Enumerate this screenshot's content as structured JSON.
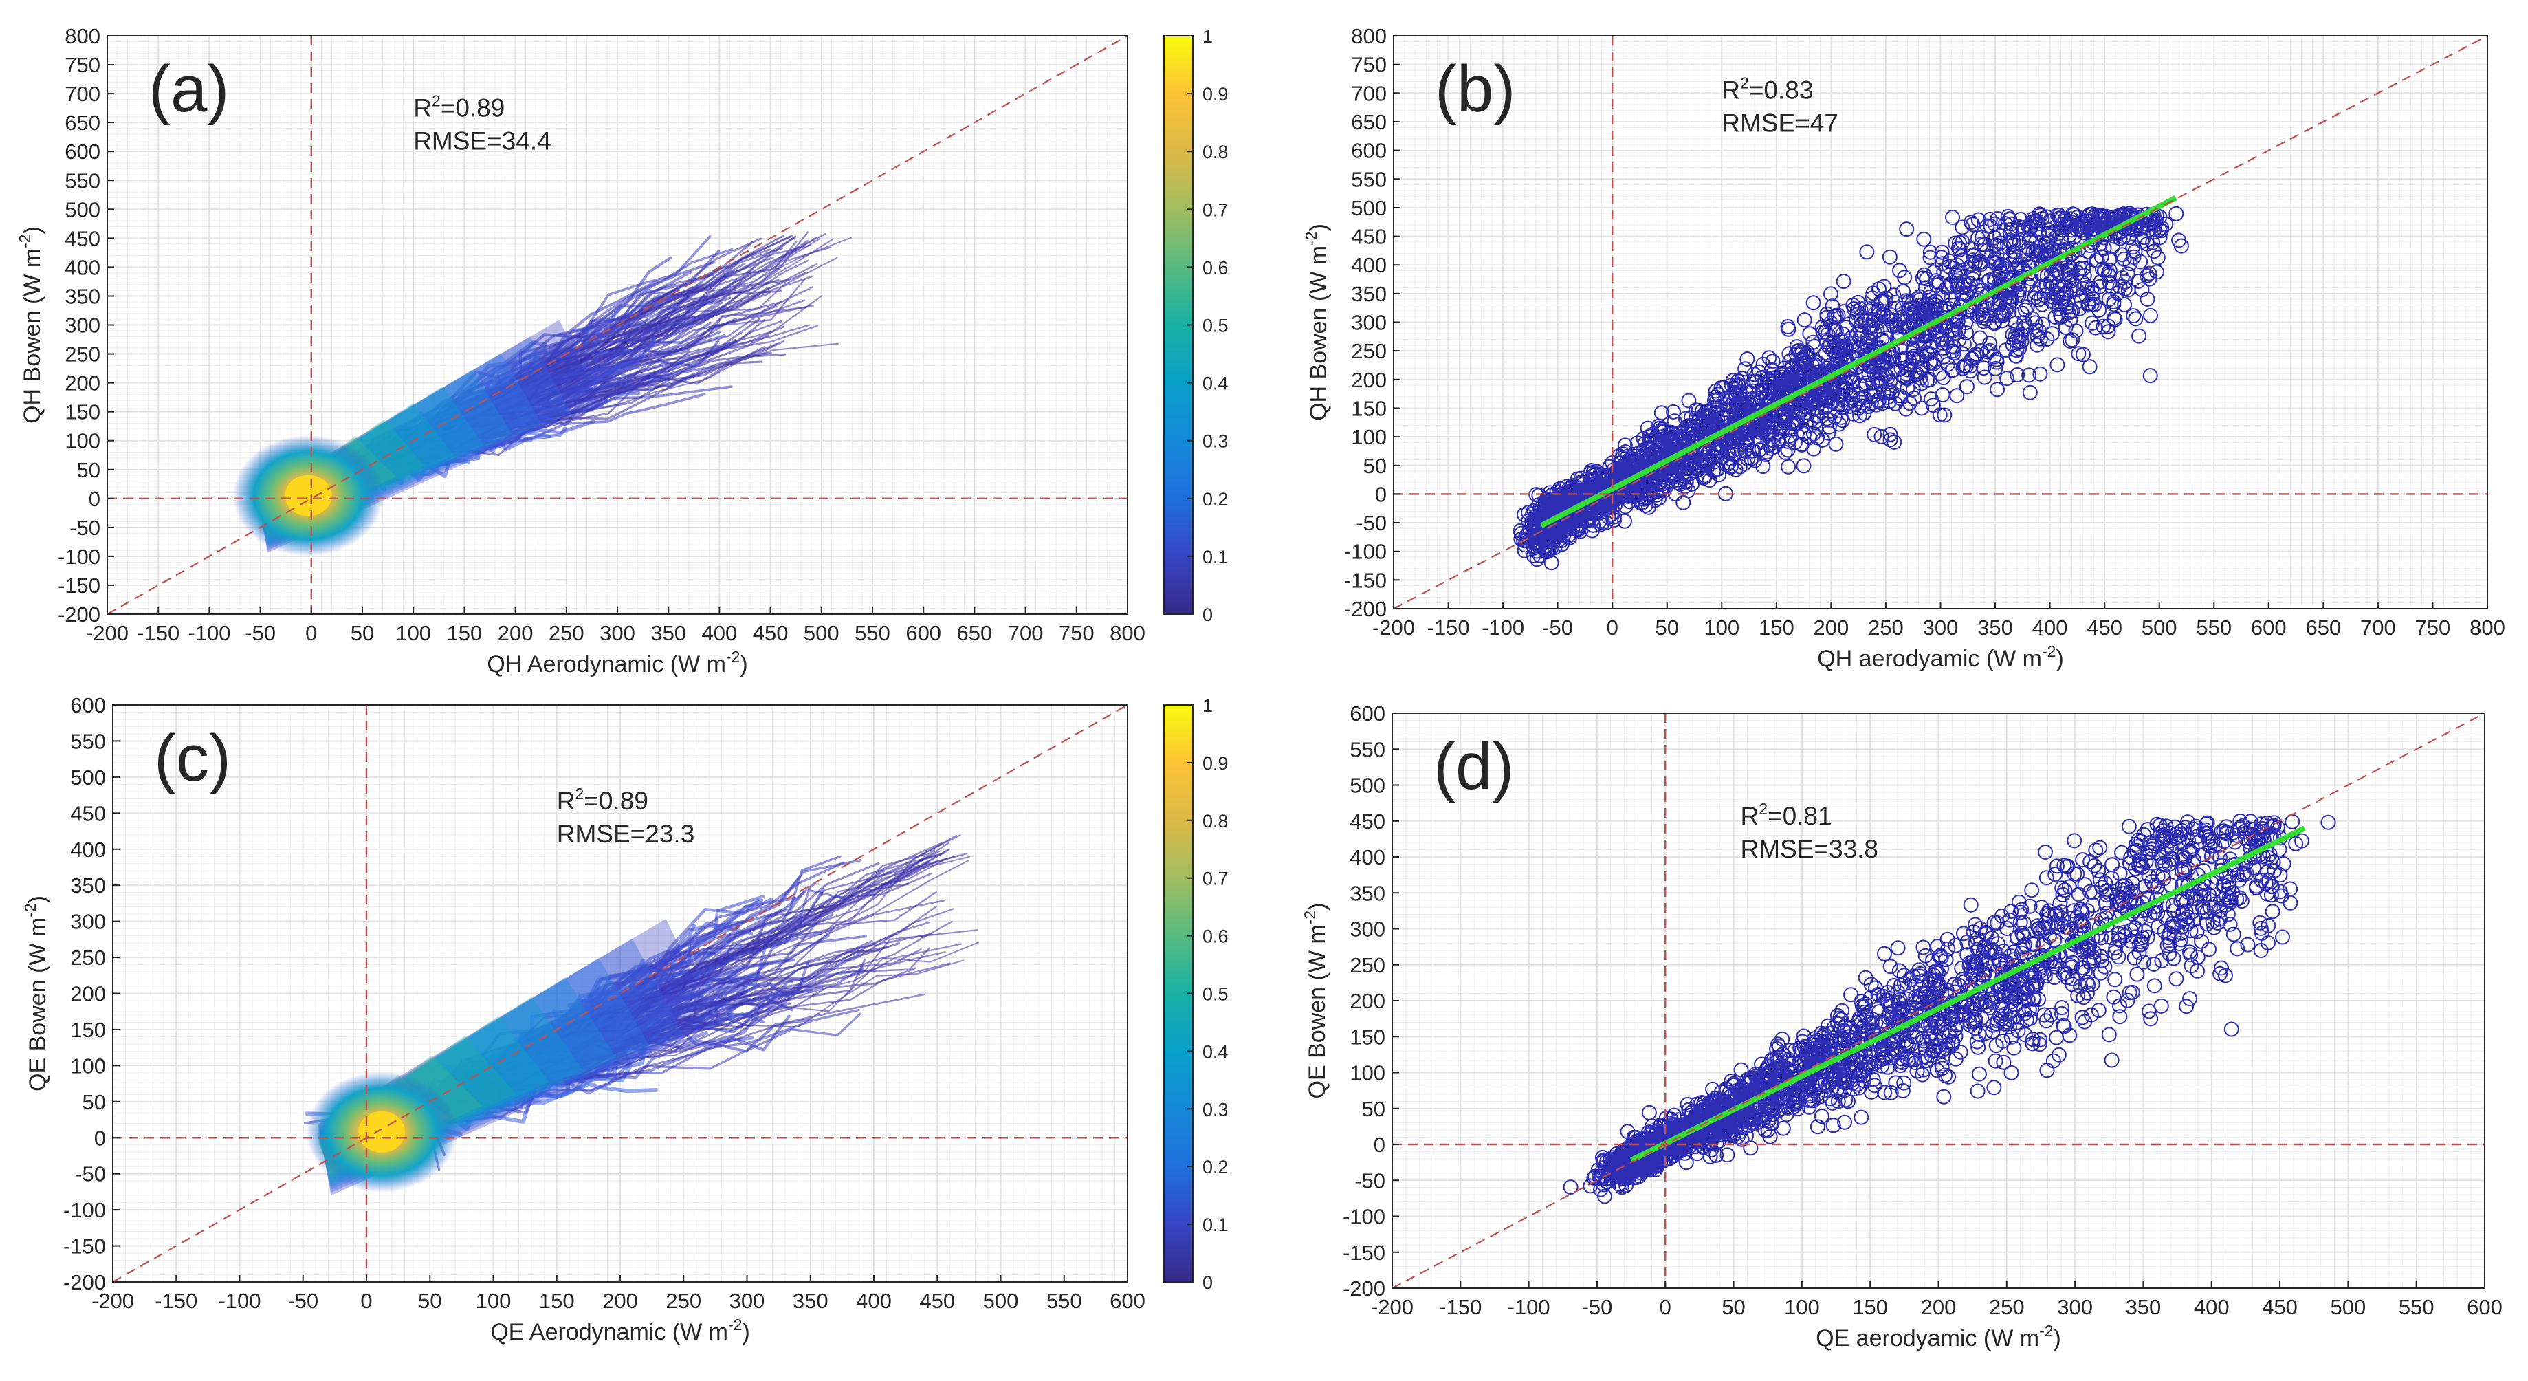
{
  "figure": {
    "background": "#ffffff",
    "grid_color": "#e3e3e3",
    "frame_color": "#262626",
    "ref_line_color": "#c0504d"
  },
  "chart_data": [
    {
      "id": "a",
      "type": "heatmap",
      "panel_label": "(a)",
      "xlabel": "QH Aerodynamic (W m",
      "xlabel_sup": "-2",
      "xlabel_end": ")",
      "ylabel": "QH Bowen (W m",
      "ylabel_sup": "-2",
      "ylabel_end": ")",
      "xlim": [
        -200,
        800
      ],
      "ylim": [
        -200,
        800
      ],
      "xticks": [
        -200,
        -150,
        -100,
        -50,
        0,
        50,
        100,
        150,
        200,
        250,
        300,
        350,
        400,
        450,
        500,
        550,
        600,
        650,
        700,
        750,
        800
      ],
      "yticks": [
        -200,
        -150,
        -100,
        -50,
        0,
        50,
        100,
        150,
        200,
        250,
        300,
        350,
        400,
        450,
        500,
        550,
        600,
        650,
        700,
        750,
        800
      ],
      "grid": true,
      "reference_lines": [
        "1:1",
        "x=0",
        "y=0"
      ],
      "r2_prefix": "R",
      "r2_sup": "2",
      "r2_value": "=0.89",
      "rmse_label": "RMSE=34.4",
      "annotation_pos": [
        100,
        660
      ],
      "density_core": [
        -3,
        5
      ],
      "density_extent": {
        "x": [
          -70,
          520
        ],
        "y": [
          -80,
          445
        ]
      },
      "colorbar": {
        "range": [
          0,
          1
        ],
        "ticks": [
          0,
          0.1,
          0.2,
          0.3,
          0.4,
          0.5,
          0.6,
          0.7,
          0.8,
          0.9,
          1
        ],
        "colormap": "parula"
      }
    },
    {
      "id": "b",
      "type": "scatter",
      "panel_label": "(b)",
      "xlabel": "QH aerodyamic (W m",
      "xlabel_sup": "-2",
      "xlabel_end": ")",
      "ylabel": "QH Bowen (W m",
      "ylabel_sup": "-2",
      "ylabel_end": ")",
      "xlim": [
        -200,
        800
      ],
      "ylim": [
        -200,
        800
      ],
      "xticks": [
        -200,
        -150,
        -100,
        -50,
        0,
        50,
        100,
        150,
        200,
        250,
        300,
        350,
        400,
        450,
        500,
        550,
        600,
        650,
        700,
        750,
        800
      ],
      "yticks": [
        -200,
        -150,
        -100,
        -50,
        0,
        50,
        100,
        150,
        200,
        250,
        300,
        350,
        400,
        450,
        500,
        550,
        600,
        650,
        700,
        750,
        800
      ],
      "grid": true,
      "reference_lines": [
        "1:1",
        "x=0",
        "y=0"
      ],
      "r2_prefix": "R",
      "r2_sup": "2",
      "r2_value": "=0.83",
      "rmse_label": "RMSE=47",
      "annotation_pos": [
        100,
        690
      ],
      "marker_color": "#2d2db4",
      "fit_color": "#33dd33",
      "fit_line": {
        "x0": -65,
        "y0": -55,
        "x1": 515,
        "y1": 517
      },
      "point_cloud": {
        "n": 2600,
        "x_range": [
          -60,
          500
        ],
        "y_max": 490,
        "spread_base": 22,
        "spread_growth": 0.16
      }
    },
    {
      "id": "c",
      "type": "heatmap",
      "panel_label": "(c)",
      "xlabel": "QE Aerodynamic (W m",
      "xlabel_sup": "-2",
      "xlabel_end": ")",
      "ylabel": "QE Bowen (W m",
      "ylabel_sup": "-2",
      "ylabel_end": ")",
      "xlim": [
        -200,
        600
      ],
      "ylim": [
        -200,
        600
      ],
      "xticks": [
        -200,
        -150,
        -100,
        -50,
        0,
        50,
        100,
        150,
        200,
        250,
        300,
        350,
        400,
        450,
        500,
        550,
        600
      ],
      "yticks": [
        -200,
        -150,
        -100,
        -50,
        0,
        50,
        100,
        150,
        200,
        250,
        300,
        350,
        400,
        450,
        500,
        550,
        600
      ],
      "grid": true,
      "reference_lines": [
        "1:1",
        "x=0",
        "y=0"
      ],
      "r2_prefix": "R",
      "r2_sup": "2",
      "r2_value": "=0.89",
      "rmse_label": "RMSE=23.3",
      "annotation_pos": [
        150,
        455
      ],
      "density_core": [
        12,
        8
      ],
      "density_extent": {
        "x": [
          -30,
          480
        ],
        "y": [
          -30,
          400
        ]
      },
      "colorbar": {
        "range": [
          0,
          1
        ],
        "ticks": [
          0,
          0.1,
          0.2,
          0.3,
          0.4,
          0.5,
          0.6,
          0.7,
          0.8,
          0.9,
          1
        ],
        "colormap": "parula"
      }
    },
    {
      "id": "d",
      "type": "scatter",
      "panel_label": "(d)",
      "xlabel": "QE aerodyamic (W m",
      "xlabel_sup": "-2",
      "xlabel_end": ")",
      "ylabel": "QE Bowen (W m",
      "ylabel_sup": "-2",
      "ylabel_end": ")",
      "xlim": [
        -200,
        600
      ],
      "ylim": [
        -200,
        600
      ],
      "xticks": [
        -200,
        -150,
        -100,
        -50,
        0,
        50,
        100,
        150,
        200,
        250,
        300,
        350,
        400,
        450,
        500,
        550,
        600
      ],
      "yticks": [
        -200,
        -150,
        -100,
        -50,
        0,
        50,
        100,
        150,
        200,
        250,
        300,
        350,
        400,
        450,
        500,
        550,
        600
      ],
      "grid": true,
      "reference_lines": [
        "1:1",
        "x=0",
        "y=0"
      ],
      "r2_prefix": "R",
      "r2_sup": "2",
      "r2_value": "=0.81",
      "rmse_label": "RMSE=33.8",
      "annotation_pos": [
        55,
        445
      ],
      "marker_color": "#2d2db4",
      "fit_color": "#33dd33",
      "fit_line": {
        "x0": -25,
        "y0": -22,
        "x1": 468,
        "y1": 440
      },
      "point_cloud": {
        "n": 2200,
        "x_range": [
          -30,
          445
        ],
        "y_max": 450,
        "spread_base": 14,
        "spread_growth": 0.16
      }
    }
  ]
}
